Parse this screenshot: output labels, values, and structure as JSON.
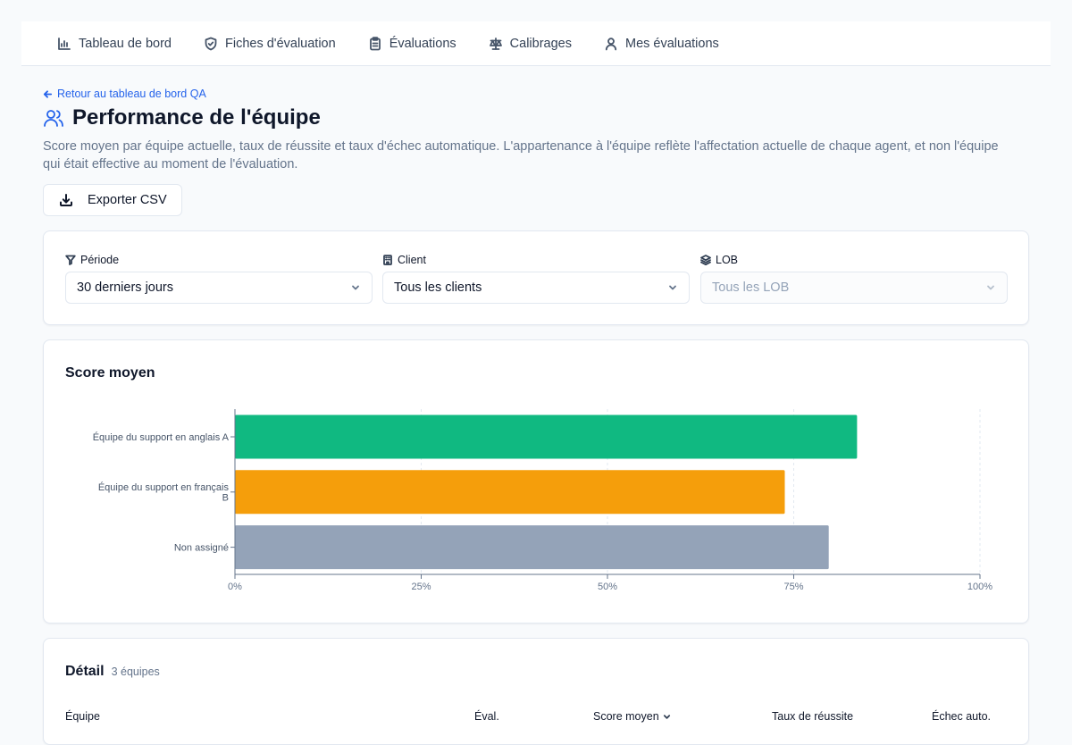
{
  "nav": {
    "items": [
      {
        "label": "Tableau de bord",
        "icon": "bar-chart-icon"
      },
      {
        "label": "Fiches d'évaluation",
        "icon": "shield-check-icon"
      },
      {
        "label": "Évaluations",
        "icon": "clipboard-icon"
      },
      {
        "label": "Calibrages",
        "icon": "scale-icon"
      },
      {
        "label": "Mes évaluations",
        "icon": "user-icon"
      }
    ]
  },
  "back_link": "Retour au tableau de bord QA",
  "page": {
    "title": "Performance de l'équipe",
    "description": "Score moyen par équipe actuelle, taux de réussite et taux d'échec automatique. L'appartenance à l'équipe reflète l'affectation actuelle de chaque agent, et non l'équipe qui était effective au moment de l'évaluation."
  },
  "export_label": "Exporter CSV",
  "filters": {
    "period": {
      "label": "Période",
      "value": "30 derniers jours"
    },
    "client": {
      "label": "Client",
      "value": "Tous les clients"
    },
    "lob": {
      "label": "LOB",
      "value": "Tous les LOB",
      "disabled": true
    }
  },
  "chart_title": "Score moyen",
  "chart_data": {
    "type": "bar",
    "orientation": "horizontal",
    "title": "Score moyen",
    "categories": [
      "Équipe du support en anglais A",
      "Équipe du support en français B",
      "Non assigné"
    ],
    "values": [
      83.5,
      73.8,
      79.7
    ],
    "colors": [
      "#10b981",
      "#f59e0b",
      "#94a3b8"
    ],
    "xlim": [
      0,
      100
    ],
    "xticks": [
      "0%",
      "25%",
      "50%",
      "75%",
      "100%"
    ],
    "grid": "vertical dashed"
  },
  "detail": {
    "title": "Détail",
    "count": "3 équipes",
    "columns": {
      "team": "Équipe",
      "evals": "Éval.",
      "avg_score": "Score moyen",
      "pass_rate": "Taux de réussite",
      "auto_fail": "Échec auto."
    }
  }
}
